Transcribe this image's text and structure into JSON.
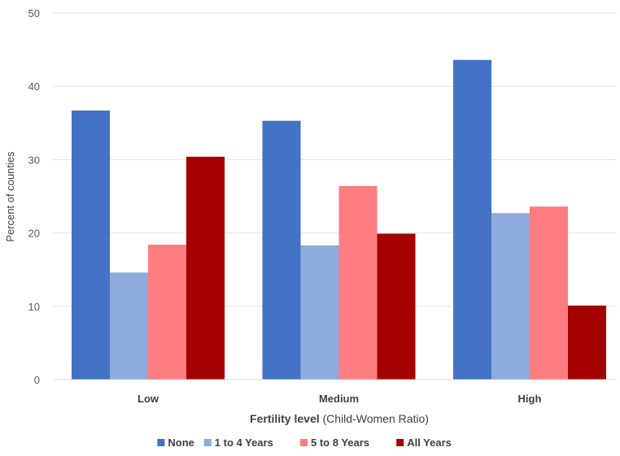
{
  "chart_data": {
    "type": "bar",
    "categories": [
      "Low",
      "Medium",
      "High"
    ],
    "series": [
      {
        "name": "None",
        "color": "#4472C4",
        "values": [
          36.7,
          35.3,
          43.6
        ]
      },
      {
        "name": "1 to 4 Years",
        "color": "#8FAADC",
        "values": [
          14.6,
          18.3,
          22.7
        ]
      },
      {
        "name": "5 to 8 Years",
        "color": "#FF7C80",
        "values": [
          18.4,
          26.4,
          23.6
        ]
      },
      {
        "name": "All Years",
        "color": "#A50000",
        "values": [
          30.4,
          19.9,
          10.1
        ]
      }
    ],
    "ylabel": "Percent of counties",
    "xlabel_bold": "Fertility level",
    "xlabel_rest": " (Child-Women Ratio)",
    "ylim": [
      0,
      50
    ],
    "yticks": [
      0,
      10,
      20,
      30,
      40,
      50
    ],
    "grid": true,
    "legend_position": "bottom"
  }
}
